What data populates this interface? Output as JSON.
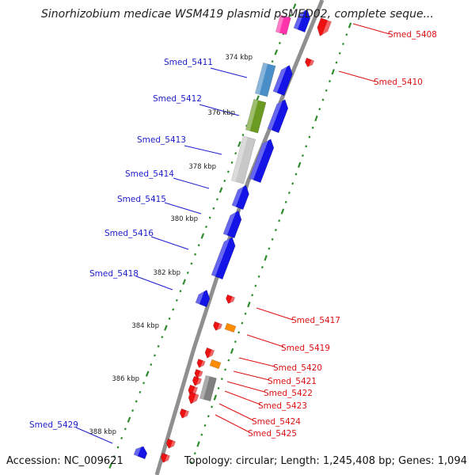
{
  "title": "Sinorhizobium medicae WSM419 plasmid pSMED02, complete seque...",
  "accession": "Accession: NC_009621",
  "summary": "Topology: circular; Length: 1,245,408 bp; Genes: 1,094",
  "colors": {
    "backbone": "#8f8f8f",
    "tick": "#2e8b2e",
    "forward_label": "#1c1ccc",
    "reverse_label": "#dd1111",
    "forward_gene": "#1414e6",
    "reverse_gene": "#ee1111"
  },
  "kbp_marks": [
    "374 kbp",
    "376 kbp",
    "378 kbp",
    "380 kbp",
    "382 kbp",
    "384 kbp",
    "386 kbp",
    "388 kbp"
  ],
  "labels_forward": [
    "Smed_5411",
    "Smed_5412",
    "Smed_5413",
    "Smed_5414",
    "Smed_5415",
    "Smed_5416",
    "Smed_5418",
    "Smed_5429"
  ],
  "labels_reverse": [
    "Smed_5408",
    "Smed_5410",
    "Smed_5417",
    "Smed_5419",
    "Smed_5420",
    "Smed_5421",
    "Smed_5422",
    "Smed_5423",
    "Smed_5424",
    "Smed_5425"
  ]
}
